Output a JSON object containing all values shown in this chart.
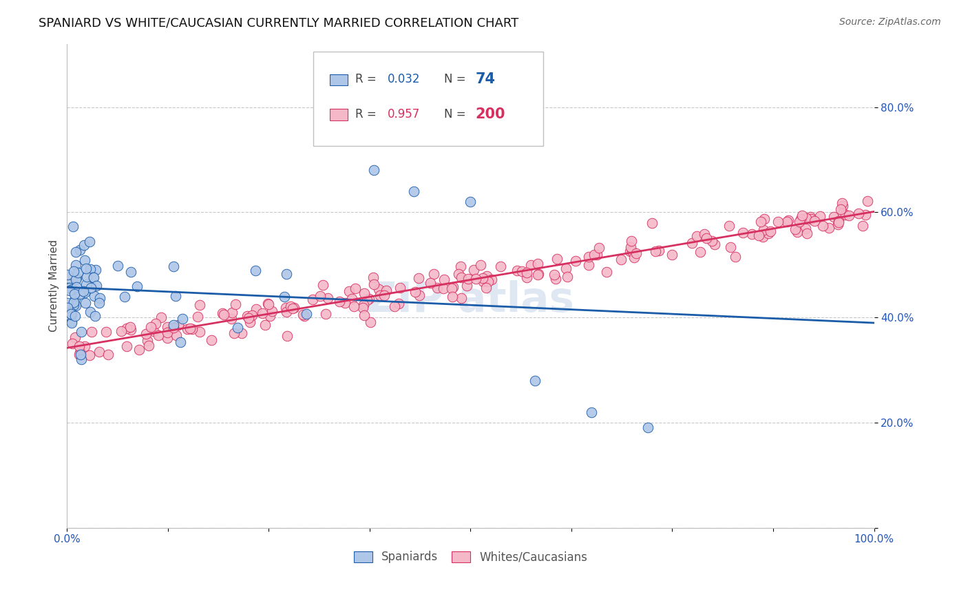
{
  "title": "SPANIARD VS WHITE/CAUCASIAN CURRENTLY MARRIED CORRELATION CHART",
  "source": "Source: ZipAtlas.com",
  "ylabel": "Currently Married",
  "y_ticks": [
    0.0,
    0.2,
    0.4,
    0.6,
    0.8
  ],
  "y_tick_labels": [
    "",
    "20.0%",
    "40.0%",
    "60.0%",
    "80.0%"
  ],
  "x_range": [
    0.0,
    1.0
  ],
  "y_range": [
    0.0,
    0.92
  ],
  "spaniards_R": 0.032,
  "spaniards_N": 74,
  "whites_R": 0.957,
  "whites_N": 200,
  "spaniard_color": "#aec6e8",
  "spaniard_line_color": "#1a5ca8",
  "white_color": "#f4b8c8",
  "white_line_color": "#d63060",
  "legend_label_blue": "Spaniards",
  "legend_label_pink": "Whites/Caucasians",
  "watermark": "ZIP atlas",
  "background_color": "#ffffff",
  "grid_color": "#c8c8c8",
  "title_fontsize": 13,
  "label_fontsize": 11,
  "tick_fontsize": 11
}
